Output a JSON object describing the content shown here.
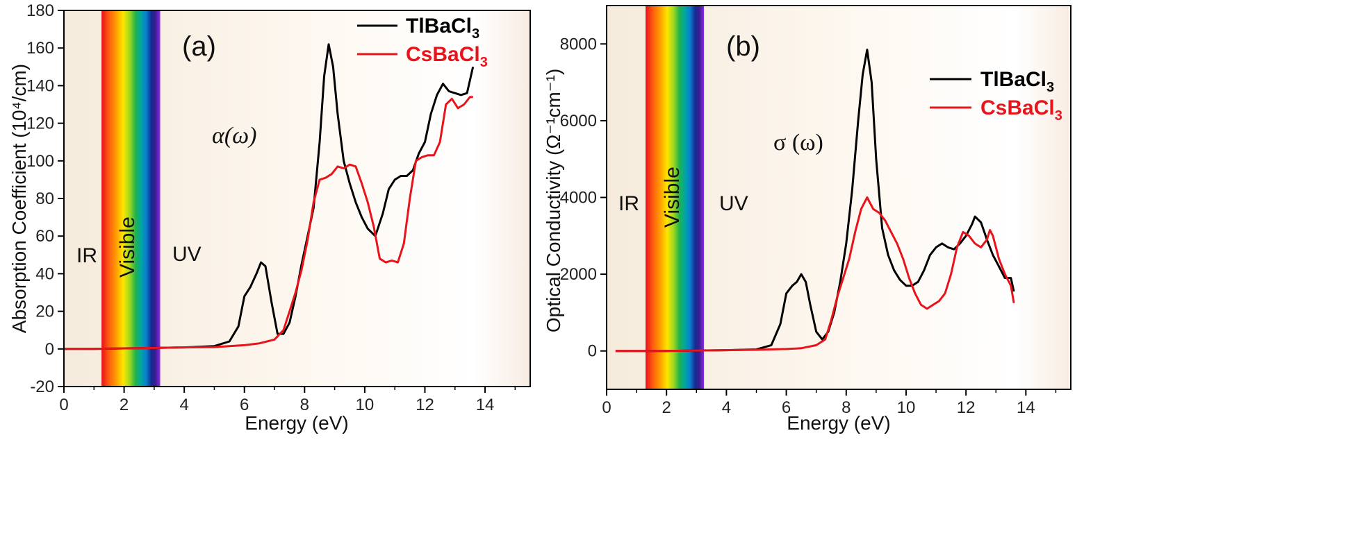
{
  "chart_data": [
    {
      "type": "line",
      "panel_label": "(a)",
      "function_label": "α(ω)",
      "xlabel": "Energy (eV)",
      "ylabel": "Absorption Coefficient (10⁴/cm)",
      "xlim": [
        0,
        15.5
      ],
      "ylim": [
        -20,
        180
      ],
      "xticks": [
        0,
        2,
        4,
        6,
        8,
        10,
        12,
        14
      ],
      "yticks": [
        -20,
        0,
        20,
        40,
        60,
        80,
        100,
        120,
        140,
        160,
        180
      ],
      "regions": {
        "ir": "IR",
        "visible": "Visible",
        "uv": "UV",
        "visible_range_ev": [
          1.25,
          3.2
        ]
      },
      "legend": {
        "position": "top-right",
        "entries": [
          {
            "base": "TlBaCl",
            "sub": "3",
            "color": "#000000"
          },
          {
            "base": "CsBaCl",
            "sub": "3",
            "color": "#e8141b"
          }
        ]
      },
      "series": [
        {
          "name": "TlBaCl3",
          "color": "#000000",
          "x": [
            0,
            1,
            2,
            3,
            4,
            5,
            5.5,
            5.8,
            6.0,
            6.2,
            6.4,
            6.55,
            6.7,
            6.9,
            7.1,
            7.3,
            7.5,
            7.7,
            7.9,
            8.1,
            8.3,
            8.5,
            8.65,
            8.8,
            8.95,
            9.1,
            9.3,
            9.5,
            9.7,
            9.9,
            10.1,
            10.35,
            10.6,
            10.8,
            11.0,
            11.2,
            11.4,
            11.6,
            11.8,
            12.0,
            12.2,
            12.4,
            12.6,
            12.8,
            13.0,
            13.2,
            13.4,
            13.6
          ],
          "y": [
            0,
            0,
            0.3,
            0.5,
            0.8,
            1.5,
            4,
            12,
            28,
            33,
            40,
            46,
            44,
            25,
            8,
            8,
            14,
            28,
            45,
            60,
            75,
            110,
            145,
            162,
            150,
            125,
            100,
            88,
            78,
            70,
            64,
            60,
            72,
            85,
            90,
            92,
            92,
            95,
            104,
            110,
            125,
            135,
            141,
            137,
            136,
            135,
            136,
            150
          ]
        },
        {
          "name": "CsBaCl3",
          "color": "#e8141b",
          "x": [
            0,
            1,
            2,
            3,
            4,
            5,
            6,
            6.5,
            7.0,
            7.3,
            7.5,
            7.7,
            7.9,
            8.1,
            8.3,
            8.5,
            8.7,
            8.9,
            9.1,
            9.3,
            9.5,
            9.7,
            9.9,
            10.1,
            10.3,
            10.5,
            10.7,
            10.9,
            11.1,
            11.3,
            11.5,
            11.7,
            11.9,
            12.1,
            12.3,
            12.5,
            12.7,
            12.9,
            13.1,
            13.3,
            13.5,
            13.6
          ],
          "y": [
            0,
            0,
            0.3,
            0.5,
            0.8,
            1,
            2,
            3,
            5,
            10,
            20,
            30,
            42,
            58,
            78,
            90,
            91,
            93,
            97,
            96,
            98,
            97,
            88,
            78,
            65,
            48,
            46,
            47,
            46,
            56,
            80,
            100,
            102,
            103,
            103,
            110,
            130,
            133,
            128,
            130,
            134,
            134
          ]
        }
      ]
    },
    {
      "type": "line",
      "panel_label": "(b)",
      "function_label": "σ (ω)",
      "xlabel": "Energy (eV)",
      "ylabel": "Optical Conductivity (Ω⁻¹cm⁻¹)",
      "xlim": [
        0,
        15.5
      ],
      "ylim": [
        -1000,
        9000
      ],
      "xticks": [
        0,
        2,
        4,
        6,
        8,
        10,
        12,
        14
      ],
      "yticks": [
        0,
        2000,
        4000,
        6000,
        8000
      ],
      "regions": {
        "ir": "IR",
        "visible": "Visible",
        "uv": "UV",
        "visible_range_ev": [
          1.3,
          3.25
        ]
      },
      "legend": {
        "position": "right",
        "entries": [
          {
            "base": "TlBaCl",
            "sub": "3",
            "color": "#000000"
          },
          {
            "base": "CsBaCl",
            "sub": "3",
            "color": "#e8141b"
          }
        ]
      },
      "series": [
        {
          "name": "TlBaCl3",
          "color": "#000000",
          "x": [
            0.3,
            1,
            2,
            3,
            4,
            5,
            5.5,
            5.8,
            6.0,
            6.2,
            6.35,
            6.5,
            6.65,
            6.8,
            7.0,
            7.2,
            7.4,
            7.6,
            7.8,
            8.0,
            8.2,
            8.4,
            8.55,
            8.7,
            8.85,
            9.0,
            9.2,
            9.4,
            9.6,
            9.8,
            10.0,
            10.2,
            10.4,
            10.6,
            10.8,
            11.0,
            11.2,
            11.4,
            11.6,
            11.8,
            12.0,
            12.2,
            12.3,
            12.5,
            12.7,
            12.9,
            13.1,
            13.3,
            13.5,
            13.6
          ],
          "y": [
            0,
            0,
            0,
            10,
            20,
            40,
            150,
            700,
            1500,
            1700,
            1800,
            2000,
            1800,
            1200,
            500,
            300,
            500,
            1000,
            1800,
            2800,
            4200,
            6000,
            7200,
            7850,
            7000,
            5000,
            3200,
            2500,
            2100,
            1850,
            1700,
            1700,
            1800,
            2100,
            2500,
            2700,
            2800,
            2700,
            2650,
            2800,
            3000,
            3300,
            3500,
            3350,
            2900,
            2500,
            2200,
            1900,
            1900,
            1550
          ]
        },
        {
          "name": "CsBaCl3",
          "color": "#e8141b",
          "x": [
            0.3,
            1,
            2,
            3,
            4,
            5,
            6,
            6.5,
            7.0,
            7.3,
            7.5,
            7.7,
            7.9,
            8.1,
            8.3,
            8.5,
            8.7,
            8.9,
            9.1,
            9.3,
            9.5,
            9.7,
            9.9,
            10.1,
            10.3,
            10.5,
            10.7,
            10.9,
            11.1,
            11.3,
            11.5,
            11.7,
            11.9,
            12.1,
            12.3,
            12.5,
            12.7,
            12.8,
            12.9,
            13.1,
            13.3,
            13.5,
            13.6
          ],
          "y": [
            0,
            0,
            0,
            10,
            20,
            30,
            50,
            70,
            150,
            300,
            800,
            1400,
            1900,
            2400,
            3100,
            3700,
            4000,
            3700,
            3600,
            3400,
            3100,
            2800,
            2400,
            1900,
            1500,
            1200,
            1100,
            1200,
            1300,
            1500,
            2000,
            2700,
            3100,
            3000,
            2800,
            2700,
            2900,
            3150,
            3000,
            2400,
            2000,
            1700,
            1250
          ]
        }
      ]
    }
  ]
}
